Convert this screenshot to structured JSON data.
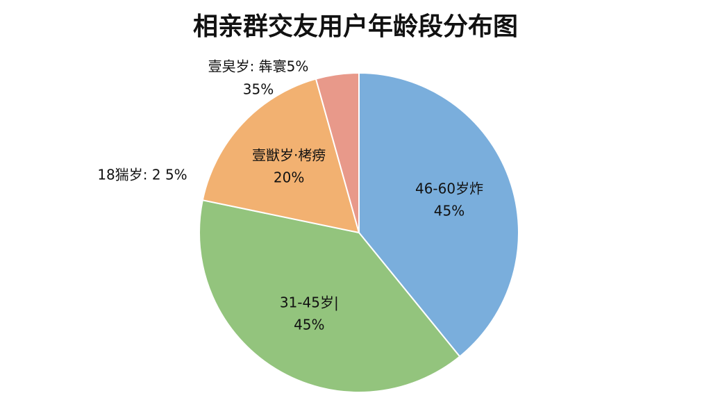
{
  "chart_data": {
    "type": "pie",
    "title": "相亲群交友用户年龄段分布图",
    "categories": [
      "46-60岁炸",
      "31-45岁|",
      "壹獣岁·栲痨",
      null
    ],
    "values": [
      45,
      45,
      20,
      5
    ],
    "value_labels": [
      "45%",
      "45%",
      "20%",
      null
    ],
    "colors": [
      "#7aaedc",
      "#93c47d",
      "#f2b171",
      "#e8998a"
    ],
    "annotations": [
      "壹㚖岁: 犇寰5%",
      "35%",
      "18猯岁: 2 5%"
    ]
  }
}
